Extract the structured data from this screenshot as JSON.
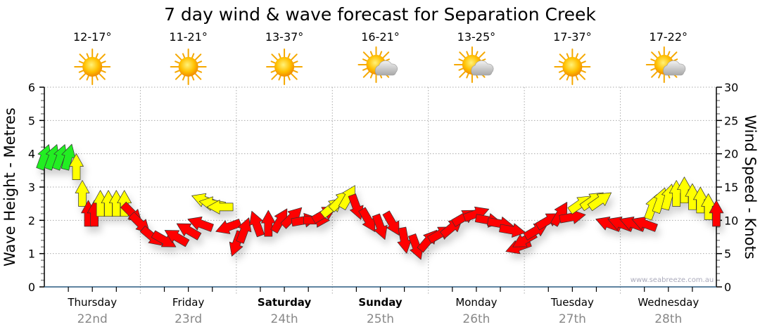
{
  "chart_data": {
    "type": "scatter",
    "title": "7 day wind & wave forecast for Separation Creek",
    "ylabel": "Wave Height - Metres",
    "y2label": "Wind Speed - Knots",
    "ylim": [
      0,
      6
    ],
    "y2lim": [
      0,
      30
    ],
    "yticks": [
      "0",
      "1",
      "2",
      "3",
      "4",
      "5",
      "6"
    ],
    "y2ticks": [
      "0",
      "5",
      "10",
      "15",
      "20",
      "25",
      "30"
    ],
    "grid": true,
    "watermark": "www.seabreeze.com.au",
    "days": [
      {
        "name": "Thursday",
        "date": "22nd",
        "temp": "12-17°",
        "weather": "sunny",
        "bold": false
      },
      {
        "name": "Friday",
        "date": "23rd",
        "temp": "11-21°",
        "weather": "sunny",
        "bold": false
      },
      {
        "name": "Saturday",
        "date": "24th",
        "temp": "13-37°",
        "weather": "sunny",
        "bold": true
      },
      {
        "name": "Sunday",
        "date": "25th",
        "temp": "16-21°",
        "weather": "partly-cloudy",
        "bold": true
      },
      {
        "name": "Monday",
        "date": "26th",
        "temp": "13-25°",
        "weather": "partly-cloudy",
        "bold": false
      },
      {
        "name": "Tuesday",
        "date": "27th",
        "temp": "17-37°",
        "weather": "sunny",
        "bold": false
      },
      {
        "name": "Wednesday",
        "date": "28th",
        "temp": "17-22°",
        "weather": "partly-cloudy",
        "bold": false
      }
    ],
    "colors": {
      "g": "#22ee22",
      "y": "#ffff00",
      "r": "#ff0000"
    },
    "wind_series_fields": [
      "hour",
      "knots",
      "arrow_heading_deg",
      "color"
    ],
    "wind": [
      [
        0,
        19.5,
        20,
        "g"
      ],
      [
        2,
        19.5,
        20,
        "g"
      ],
      [
        4,
        19.5,
        20,
        "g"
      ],
      [
        6,
        19.5,
        15,
        "g"
      ],
      [
        8,
        18,
        0,
        "y"
      ],
      [
        9.5,
        14,
        0,
        "y"
      ],
      [
        11,
        11,
        0,
        "r"
      ],
      [
        12.5,
        11,
        0,
        "r"
      ],
      [
        14,
        12.5,
        0,
        "y"
      ],
      [
        16,
        12.5,
        0,
        "y"
      ],
      [
        18,
        12.5,
        0,
        "y"
      ],
      [
        20,
        12.5,
        0,
        "y"
      ],
      [
        22,
        11,
        135,
        "r"
      ],
      [
        24,
        9.5,
        135,
        "r"
      ],
      [
        27,
        7.5,
        130,
        "r"
      ],
      [
        30,
        7,
        120,
        "r"
      ],
      [
        33,
        7.5,
        300,
        "r"
      ],
      [
        36,
        8.5,
        300,
        "r"
      ],
      [
        39,
        9.5,
        290,
        "r"
      ],
      [
        40,
        13,
        290,
        "y"
      ],
      [
        42,
        12.5,
        280,
        "y"
      ],
      [
        44,
        12,
        270,
        "y"
      ],
      [
        46,
        9,
        250,
        "r"
      ],
      [
        48,
        6.5,
        200,
        "r"
      ],
      [
        50,
        8.5,
        20,
        "r"
      ],
      [
        53,
        9.5,
        340,
        "r"
      ],
      [
        56,
        9.5,
        0,
        "r"
      ],
      [
        59,
        10,
        30,
        "r"
      ],
      [
        62,
        10.5,
        45,
        "r"
      ],
      [
        65,
        10,
        80,
        "r"
      ],
      [
        68,
        10,
        90,
        "r"
      ],
      [
        70,
        11,
        60,
        "r"
      ],
      [
        72,
        12,
        50,
        "y"
      ],
      [
        74,
        13,
        45,
        "y"
      ],
      [
        76,
        13.5,
        30,
        "y"
      ],
      [
        78,
        12,
        160,
        "r"
      ],
      [
        81,
        10,
        150,
        "r"
      ],
      [
        84,
        9,
        160,
        "r"
      ],
      [
        87,
        9.5,
        150,
        "r"
      ],
      [
        90,
        7,
        170,
        "r"
      ],
      [
        93,
        6,
        160,
        "r"
      ],
      [
        96,
        7,
        40,
        "r"
      ],
      [
        99,
        8,
        60,
        "r"
      ],
      [
        102,
        9,
        50,
        "r"
      ],
      [
        105,
        10.5,
        60,
        "r"
      ],
      [
        108,
        11,
        70,
        "r"
      ],
      [
        111,
        10,
        100,
        "r"
      ],
      [
        114,
        9.5,
        100,
        "r"
      ],
      [
        117,
        8.5,
        100,
        "r"
      ],
      [
        118.5,
        6,
        250,
        "r"
      ],
      [
        120,
        7,
        240,
        "r"
      ],
      [
        123,
        8.5,
        60,
        "r"
      ],
      [
        126,
        10,
        60,
        "r"
      ],
      [
        129,
        11,
        30,
        "r"
      ],
      [
        132,
        10.5,
        80,
        "r"
      ],
      [
        134,
        12.5,
        55,
        "y"
      ],
      [
        137,
        13,
        55,
        "y"
      ],
      [
        139,
        13,
        55,
        "y"
      ],
      [
        141,
        9.5,
        290,
        "r"
      ],
      [
        144,
        9.5,
        290,
        "r"
      ],
      [
        147,
        9.5,
        290,
        "r"
      ],
      [
        150,
        9.5,
        290,
        "r"
      ],
      [
        152,
        12,
        20,
        "y"
      ],
      [
        154,
        13,
        20,
        "y"
      ],
      [
        156,
        13.5,
        15,
        "y"
      ],
      [
        158,
        14,
        0,
        "y"
      ],
      [
        160,
        14.5,
        0,
        "y"
      ],
      [
        162,
        13.5,
        0,
        "y"
      ],
      [
        164,
        13,
        0,
        "y"
      ],
      [
        166,
        12,
        0,
        "y"
      ],
      [
        168,
        11,
        0,
        "r"
      ]
    ]
  }
}
